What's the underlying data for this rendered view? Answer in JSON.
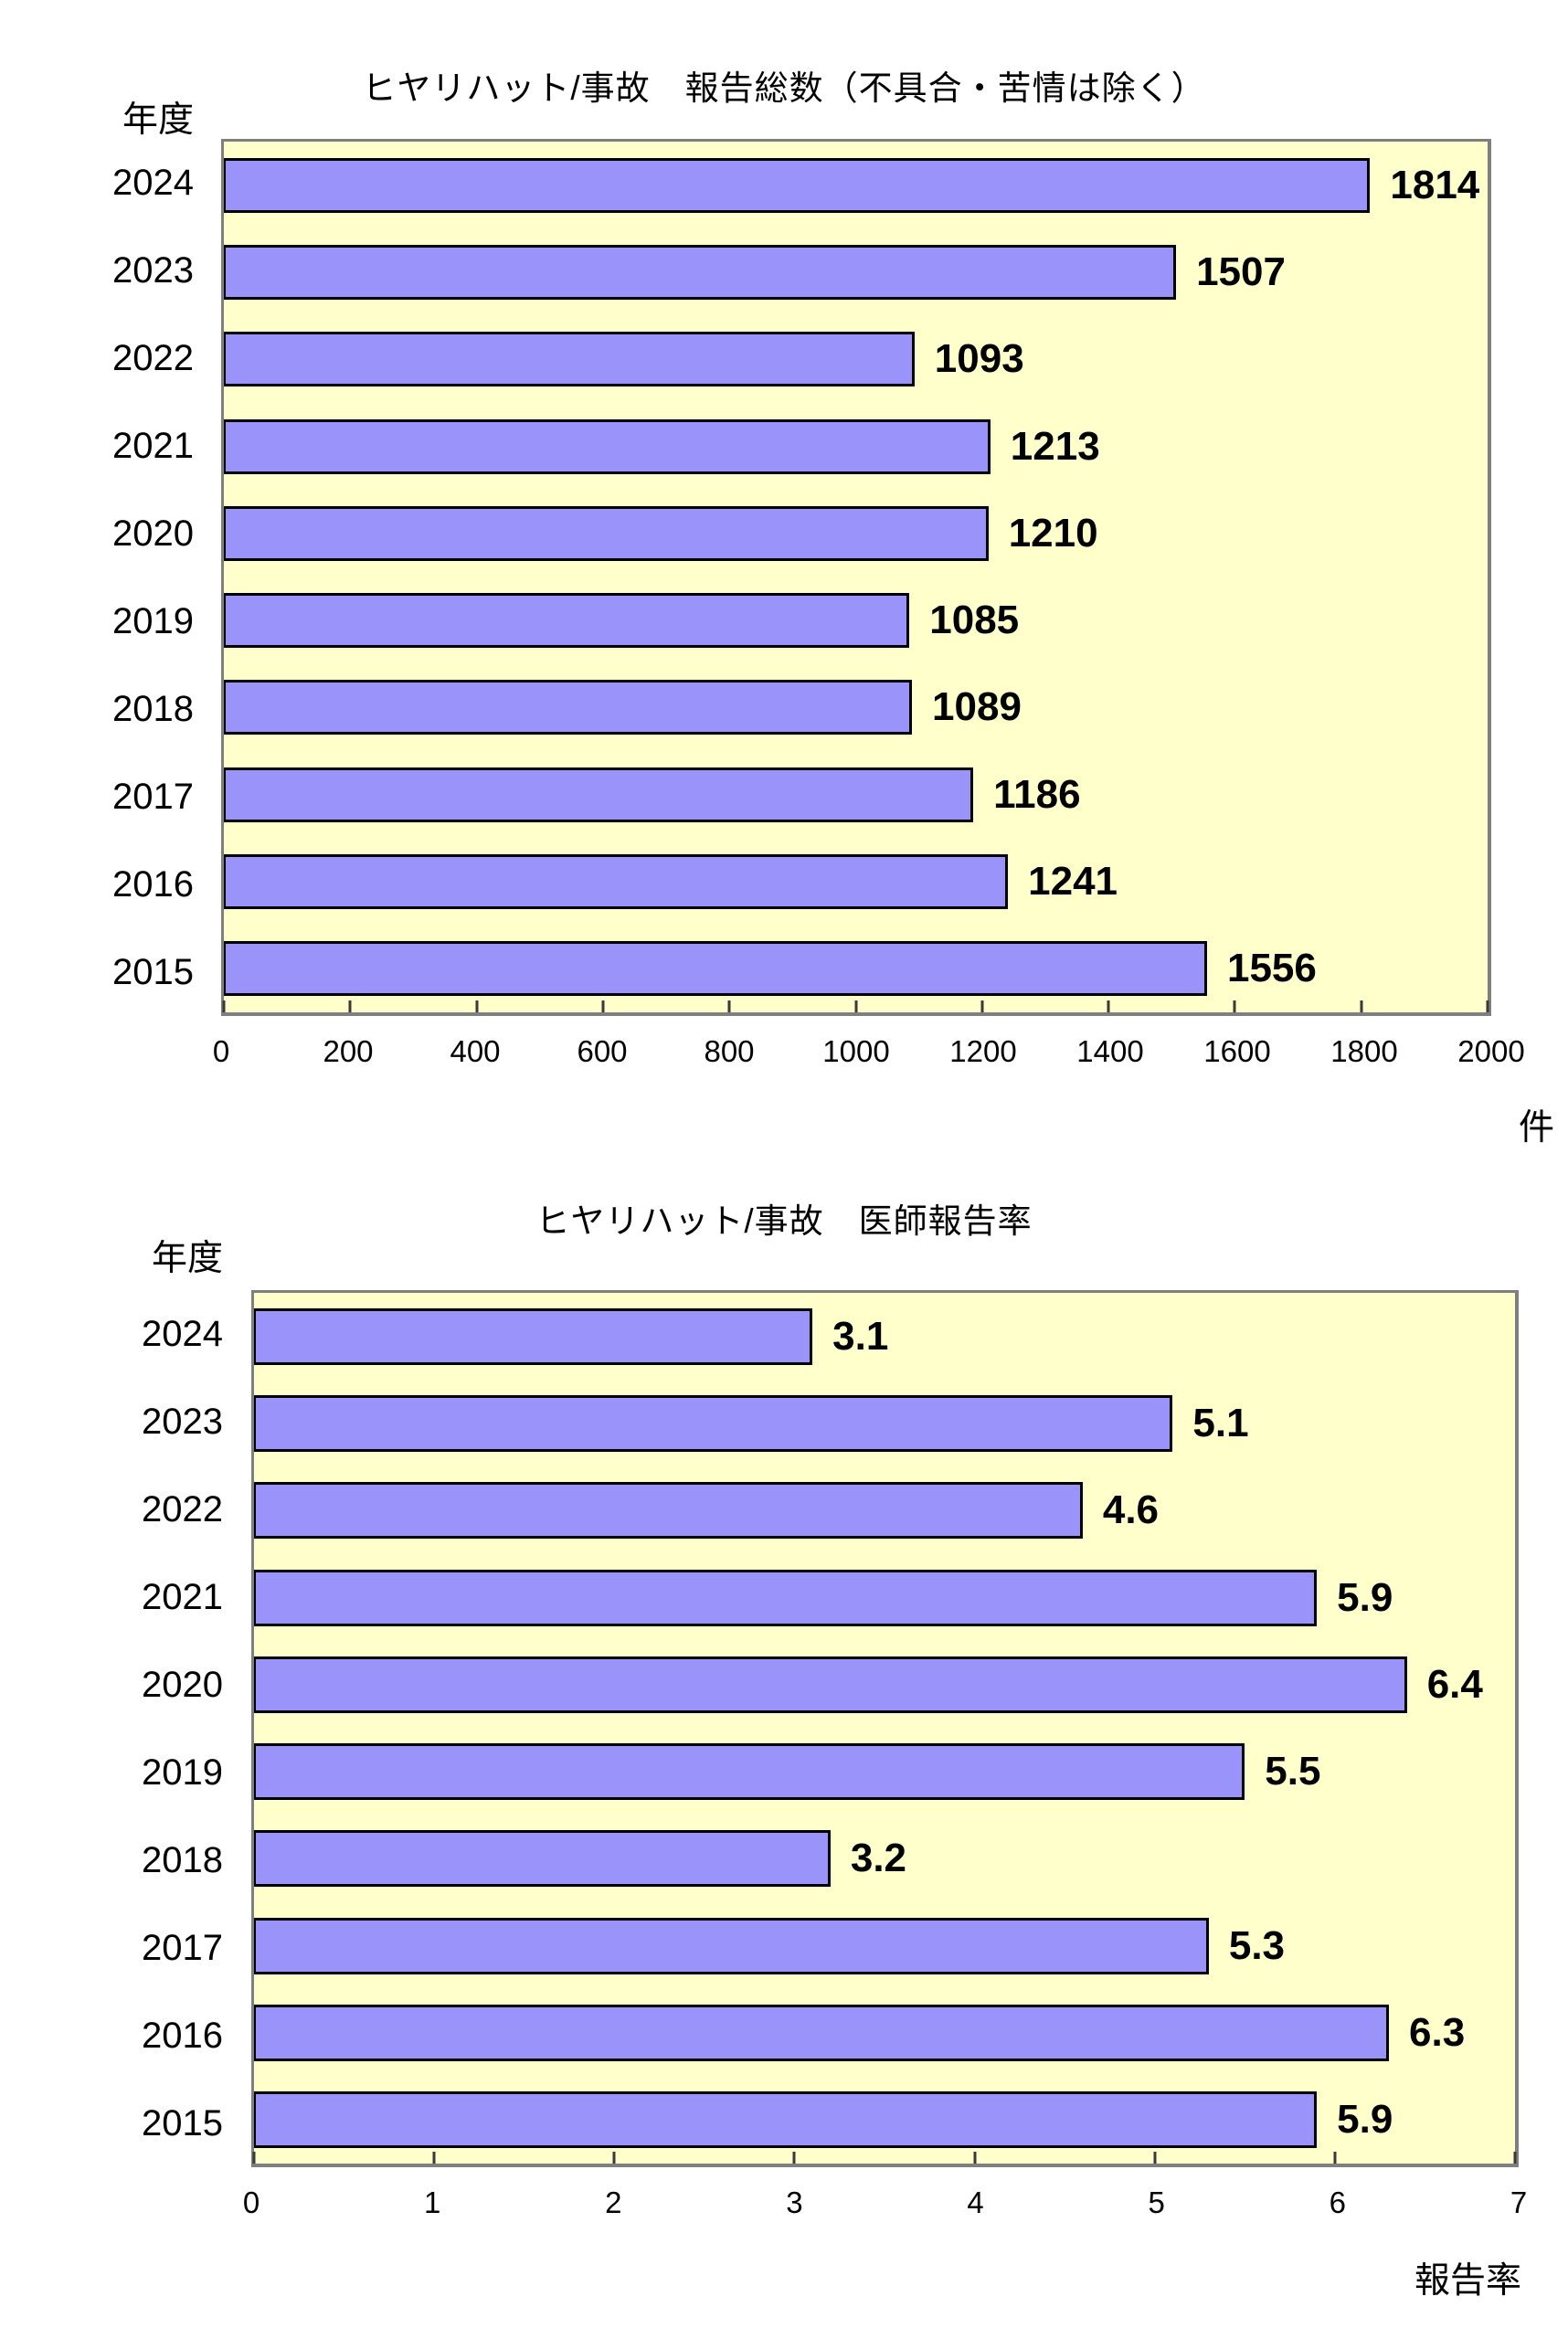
{
  "colors": {
    "bar_fill": "#9A94FA",
    "bar_border": "#000000",
    "plot_bg": "#FFFFCC",
    "plot_border": "#7F7F7F",
    "tick_color": "#3A3A3A",
    "text_color": "#000000"
  },
  "chart_data": [
    {
      "type": "bar",
      "orientation": "horizontal",
      "title": "ヒヤリハット/事故　報告総数（不具合・苦情は除く）",
      "ylabel": "年度",
      "unit_label": "件",
      "categories": [
        "2024",
        "2023",
        "2022",
        "2021",
        "2020",
        "2019",
        "2018",
        "2017",
        "2016",
        "2015"
      ],
      "values": [
        1814,
        1507,
        1093,
        1213,
        1210,
        1085,
        1089,
        1186,
        1241,
        1556
      ],
      "value_labels": [
        "1814",
        "1507",
        "1093",
        "1213",
        "1210",
        "1085",
        "1089",
        "1186",
        "1241",
        "1556"
      ],
      "xlim": [
        0,
        2000
      ],
      "xticks": [
        0,
        200,
        400,
        600,
        800,
        1000,
        1200,
        1400,
        1600,
        1800,
        2000
      ],
      "xtick_labels": [
        "0",
        "200",
        "400",
        "600",
        "800",
        "1000",
        "1200",
        "1400",
        "1600",
        "1800",
        "2000"
      ],
      "grid": false,
      "legend": false
    },
    {
      "type": "bar",
      "orientation": "horizontal",
      "title": "ヒヤリハット/事故　医師報告率",
      "ylabel": "年度",
      "unit_label": "報告率",
      "categories": [
        "2024",
        "2023",
        "2022",
        "2021",
        "2020",
        "2019",
        "2018",
        "2017",
        "2016",
        "2015"
      ],
      "values": [
        3.1,
        5.1,
        4.6,
        5.9,
        6.4,
        5.5,
        3.2,
        5.3,
        6.3,
        5.9
      ],
      "value_labels": [
        "3.1",
        "5.1",
        "4.6",
        "5.9",
        "6.4",
        "5.5",
        "3.2",
        "5.3",
        "6.3",
        "5.9"
      ],
      "xlim": [
        0,
        7
      ],
      "xticks": [
        0,
        1,
        2,
        3,
        4,
        5,
        6,
        7
      ],
      "xtick_labels": [
        "0",
        "1",
        "2",
        "3",
        "4",
        "5",
        "6",
        "7"
      ],
      "grid": false,
      "legend": false
    }
  ]
}
